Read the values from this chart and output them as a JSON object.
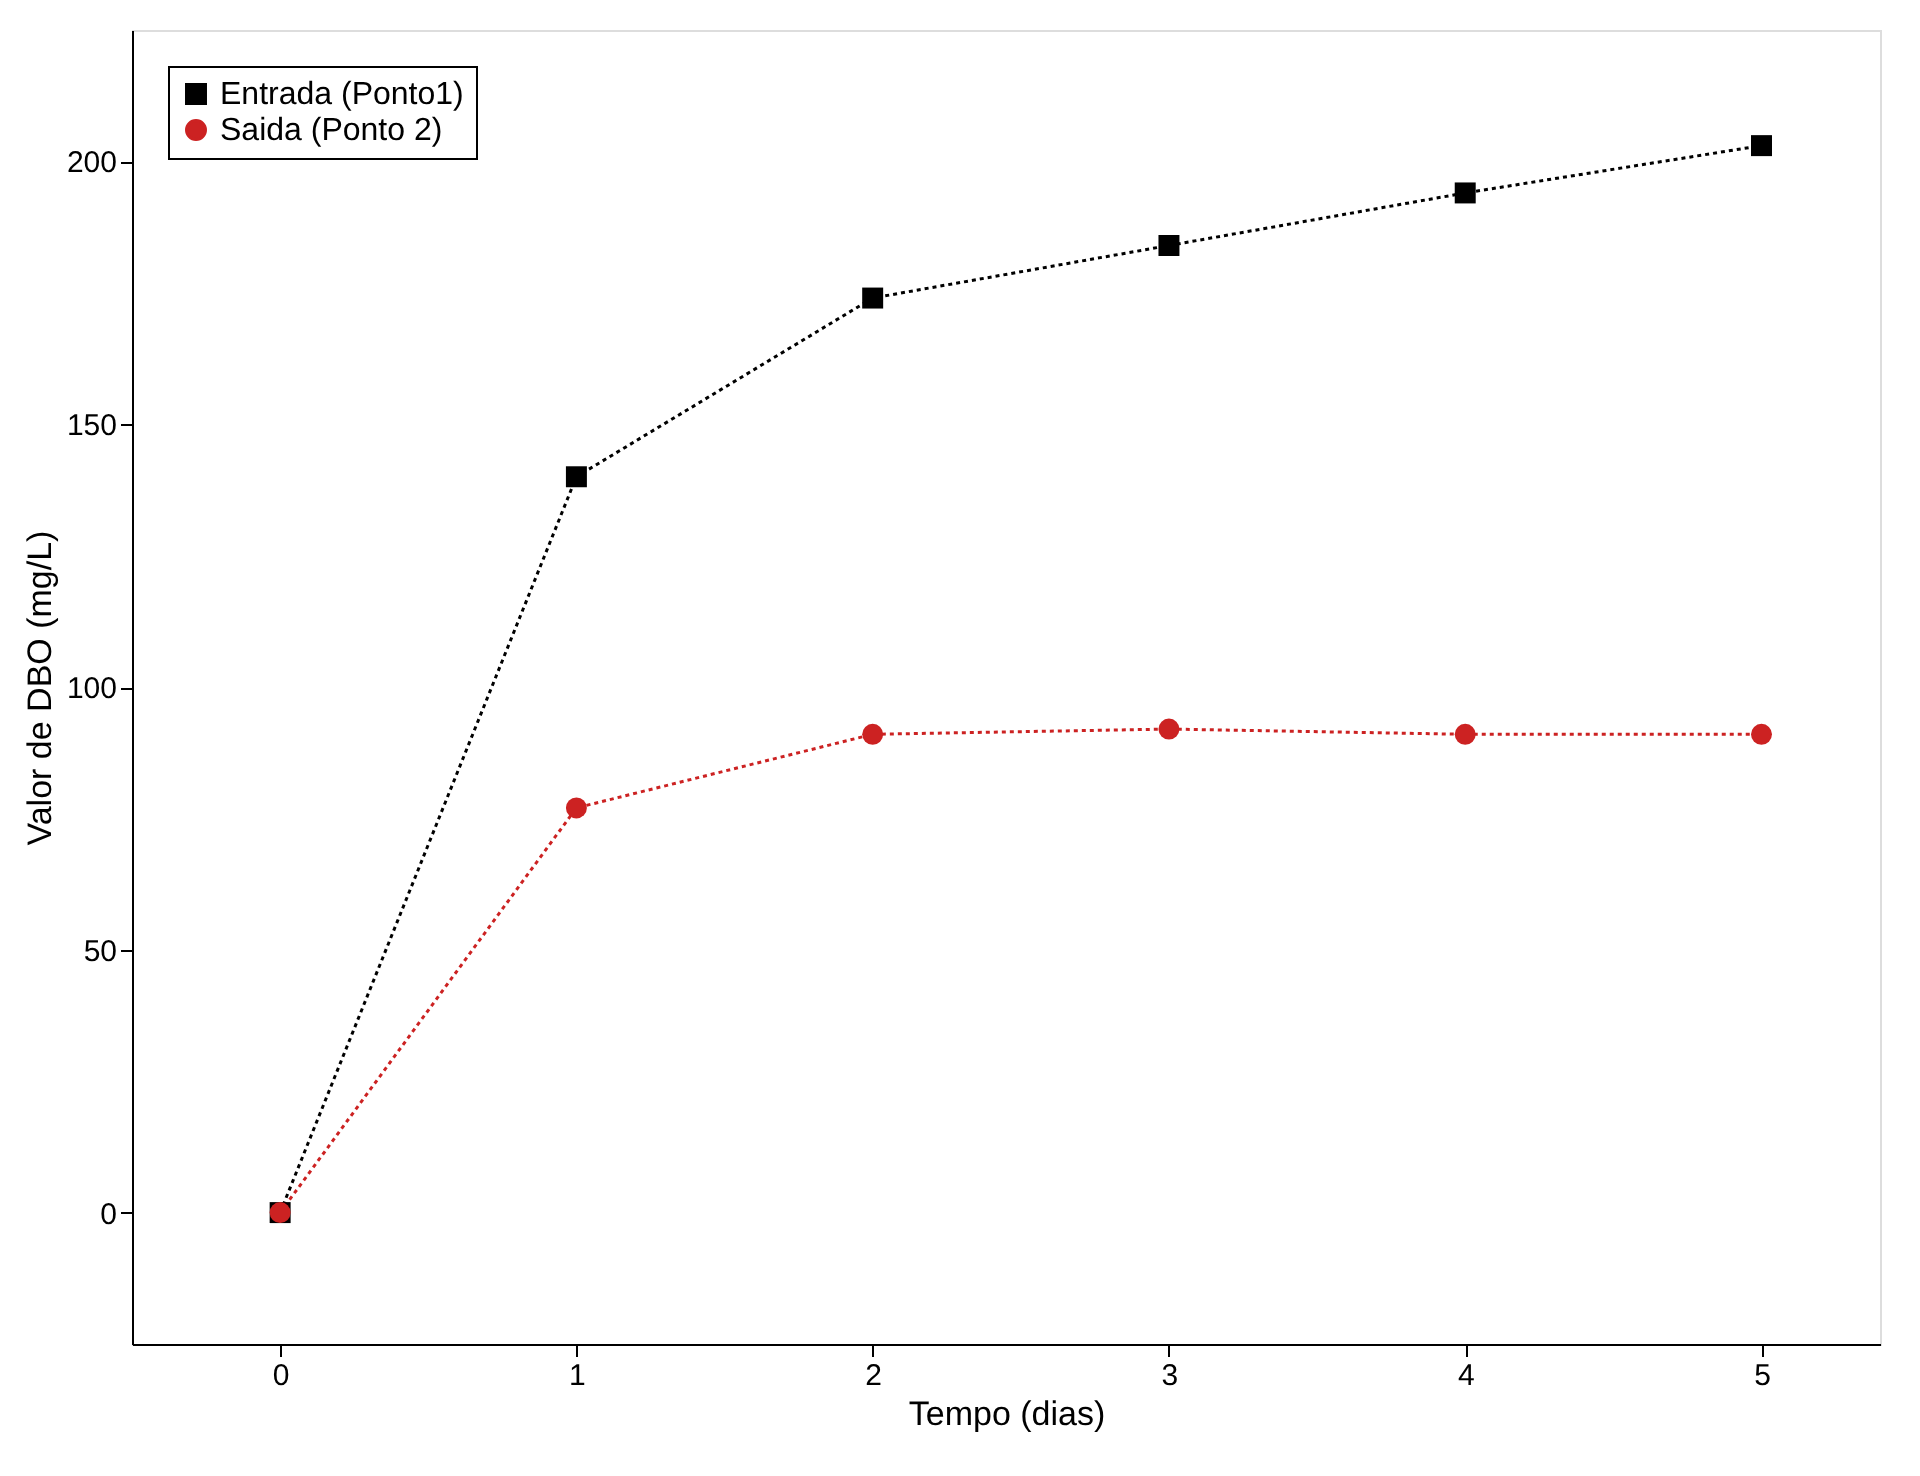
{
  "chart_data": {
    "type": "line",
    "xlabel": "Tempo (dias)",
    "ylabel": "Valor de DBO (mg/L)",
    "x": [
      0,
      1,
      2,
      3,
      4,
      5
    ],
    "series": [
      {
        "name": "Entrada (Ponto1)",
        "color": "#000000",
        "marker": "square",
        "values": [
          0,
          140,
          174,
          184,
          194,
          203
        ]
      },
      {
        "name": "Saida (Ponto 2)",
        "color": "#cc2222",
        "marker": "circle",
        "values": [
          0,
          77,
          91,
          92,
          91,
          91
        ]
      }
    ],
    "xlim": [
      -0.5,
      5.4
    ],
    "ylim": [
      -25,
      225
    ],
    "xticks": [
      0,
      1,
      2,
      3,
      4,
      5
    ],
    "yticks": [
      0,
      50,
      100,
      150,
      200
    ],
    "grid": false,
    "legend": "top left",
    "line_style": "dotted"
  }
}
